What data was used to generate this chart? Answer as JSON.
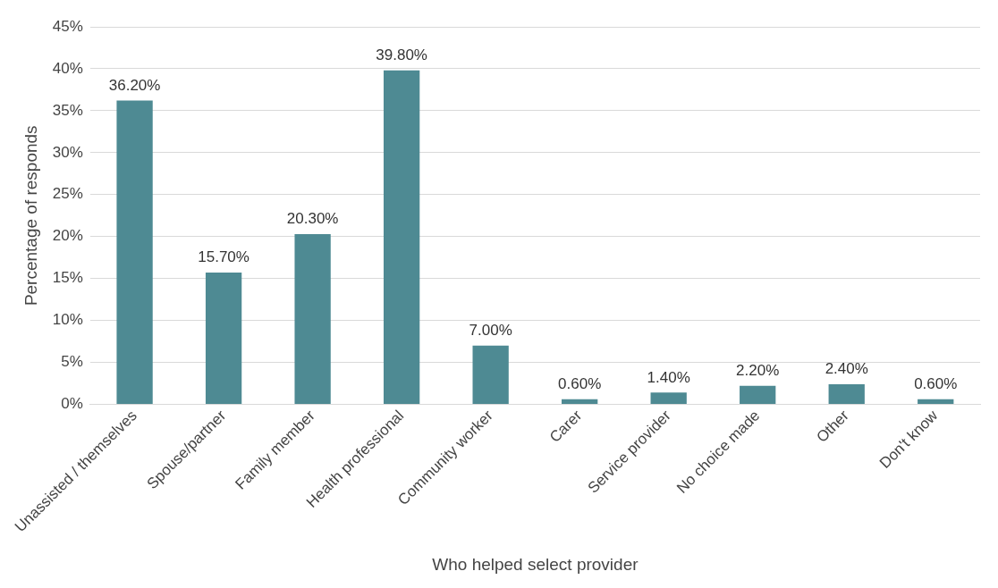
{
  "chart_data": {
    "type": "bar",
    "xlabel": "Who helped select provider",
    "ylabel": "Percentage of responds",
    "categories": [
      "Unassisted / themselves",
      "Spouse/partner",
      "Family member",
      "Health professional",
      "Community worker",
      "Carer",
      "Service provider",
      "No choice made",
      "Other",
      "Don't know"
    ],
    "values": [
      36.2,
      15.7,
      20.3,
      39.8,
      7.0,
      0.6,
      1.4,
      2.2,
      2.4,
      0.6
    ],
    "value_labels": [
      "36.20%",
      "15.70%",
      "20.30%",
      "39.80%",
      "7.00%",
      "0.60%",
      "1.40%",
      "2.20%",
      "2.40%",
      "0.60%"
    ],
    "color": "#4e8a93",
    "ylim": [
      0,
      45
    ],
    "yticks": [
      {
        "value": 0,
        "label": "0%"
      },
      {
        "value": 5,
        "label": "5%"
      },
      {
        "value": 10,
        "label": "10%"
      },
      {
        "value": 15,
        "label": "15%"
      },
      {
        "value": 20,
        "label": "20%"
      },
      {
        "value": 25,
        "label": "25%"
      },
      {
        "value": 30,
        "label": "30%"
      },
      {
        "value": 35,
        "label": "35%"
      },
      {
        "value": 40,
        "label": "40%"
      },
      {
        "value": 45,
        "label": "45%"
      }
    ],
    "grid": "y",
    "legend": false
  }
}
